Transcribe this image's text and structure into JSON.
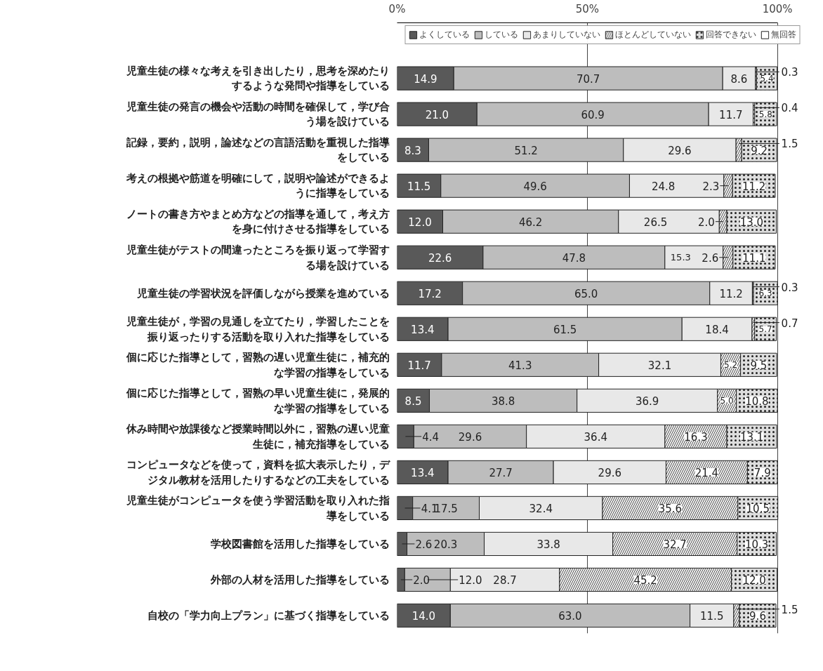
{
  "chart_data": {
    "type": "bar",
    "orientation": "horizontal",
    "stacked": true,
    "legend": "top",
    "grid": "x",
    "xlim": [
      0,
      100
    ],
    "xticks": [
      {
        "value": 0,
        "label": "0%"
      },
      {
        "value": 50,
        "label": "50%"
      },
      {
        "value": 100,
        "label": "100%"
      }
    ],
    "categories": [
      "児童生徒の様々な考えを引き出したり，思考を深めたりするような発問や指導をしている",
      "児童生徒の発言の機会や活動の時間を確保して，学び合う場を設けている",
      "記録，要約，説明，論述などの言語活動を重視した指導をしている",
      "考えの根拠や筋道を明確にして，説明や論述ができるように指導をしている",
      "ノートの書き方やまとめ方などの指導を通して，考え方を身に付けさせる指導をしている",
      "児童生徒がテストの間違ったところを振り返って学習する場を設けている",
      "児童生徒の学習状況を評価しながら授業を進めている",
      "児童生徒が，学習の見通しを立てたり，学習したことを振り返ったりする活動を取り入れた指導をしている",
      "個に応じた指導として，習熟の遅い児童生徒に，補充的な学習の指導をしている",
      "個に応じた指導として，習熟の早い児童生徒に，発展的な学習の指導をしている",
      "休み時間や放課後など授業時間以外に，習熟の遅い児童生徒に，補充指導をしている",
      "コンピュータなどを使って，資料を拡大表示したり，デジタル教材を活用したりするなどの工夫をしている",
      "児童生徒がコンピュータを使う学習活動を取り入れた指導をしている",
      "学校図書館を活用した指導をしている",
      "外部の人材を活用した指導をしている",
      "自校の「学力向上プラン」に基づく指導をしている"
    ],
    "series": [
      {
        "name": "よくしている",
        "color": "#595959",
        "values": [
          14.9,
          21.0,
          8.3,
          11.5,
          12.0,
          22.6,
          17.2,
          13.4,
          11.7,
          8.5,
          4.4,
          13.4,
          4.1,
          2.6,
          2.0,
          14.0
        ],
        "value_labels": [
          "14.9",
          "21.0",
          "8.3",
          "11.5",
          "12.0",
          "22.6",
          "17.2",
          "13.4",
          "11.7",
          "8.5",
          "4.4",
          "13.4",
          "4.1",
          "2.6",
          "2.0",
          "14.0"
        ]
      },
      {
        "name": "している",
        "color": "#bdbdbd",
        "values": [
          70.7,
          60.9,
          51.2,
          49.6,
          46.2,
          47.8,
          65.0,
          61.5,
          41.3,
          38.8,
          29.6,
          27.7,
          17.5,
          20.3,
          12.0,
          63.0
        ],
        "value_labels": [
          "70.7",
          "60.9",
          "51.2",
          "49.6",
          "46.2",
          "47.8",
          "65.0",
          "61.5",
          "41.3",
          "38.8",
          "29.6",
          "27.7",
          "17.5",
          "20.3",
          "12.0",
          "63.0"
        ]
      },
      {
        "name": "あまりしていない",
        "color": "#e8e8e8",
        "values": [
          8.6,
          11.7,
          29.6,
          24.8,
          26.5,
          15.3,
          11.2,
          18.4,
          32.1,
          36.9,
          36.4,
          29.6,
          32.4,
          33.8,
          28.7,
          11.5
        ],
        "value_labels": [
          "8.6",
          "11.7",
          "29.6",
          "24.8",
          "26.5",
          "15.3",
          "11.2",
          "18.4",
          "32.1",
          "36.9",
          "36.4",
          "29.6",
          "32.4",
          "33.8",
          "28.7",
          "11.5"
        ]
      },
      {
        "name": "ほとんどしていない",
        "color": "#f4f4f4",
        "values": [
          0.3,
          0.4,
          1.5,
          2.3,
          2.0,
          2.6,
          0.3,
          0.7,
          5.2,
          5.0,
          16.3,
          21.4,
          35.6,
          32.7,
          45.2,
          1.5
        ],
        "value_labels": [
          "0.3",
          "0.4",
          "1.5",
          "2.3",
          "2.0",
          "2.6",
          "0.3",
          "0.7",
          "5.2",
          "5.0",
          "16.3",
          "21.4",
          "35.6",
          "32.7",
          "45.2",
          "1.5"
        ]
      },
      {
        "name": "回答できない",
        "color": "#dddddd",
        "values": [
          5.4,
          5.8,
          9.2,
          11.2,
          13.0,
          11.1,
          6.3,
          5.7,
          9.5,
          10.8,
          13.1,
          7.9,
          10.5,
          10.3,
          12.0,
          9.6
        ],
        "value_labels": [
          "5.4",
          "5.8",
          "9.2",
          "11.2",
          "13.0",
          "11.1",
          "6.3",
          "5.7",
          "9.5",
          "10.8",
          "13.1",
          "7.9",
          "10.5",
          "10.3",
          "12.0",
          "9.6"
        ]
      },
      {
        "name": "無回答",
        "color": "#ffffff",
        "values": [
          null,
          null,
          null,
          null,
          null,
          null,
          null,
          null,
          null,
          null,
          null,
          null,
          null,
          null,
          null,
          null
        ]
      }
    ]
  }
}
